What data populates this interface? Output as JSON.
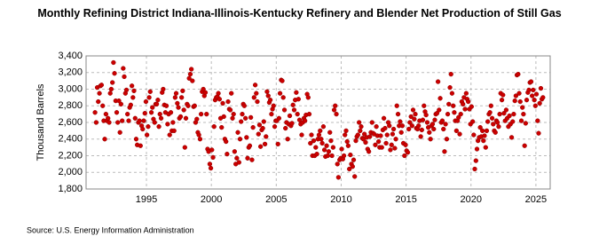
{
  "chart_data": {
    "type": "scatter",
    "title": "Monthly Refining District Indiana-Illinois-Kentucky Refinery and Blender Net Production of Still Gas",
    "y_label": "Thousand Barrels",
    "source": "Source: U.S. Energy Information Administration",
    "color": "#cc0000",
    "grid": true,
    "xlim": [
      1990.35,
      2026.1
    ],
    "ylim": [
      1800,
      3400
    ],
    "xticks": [
      1995,
      2000,
      2005,
      2010,
      2015,
      2020,
      2025
    ],
    "yticks": [
      {
        "value": 1800,
        "label": "1,800"
      },
      {
        "value": 2000,
        "label": "2,000"
      },
      {
        "value": 2200,
        "label": "2,200"
      },
      {
        "value": 2400,
        "label": "2,400"
      },
      {
        "value": 2600,
        "label": "2,600"
      },
      {
        "value": 2800,
        "label": "2,800"
      },
      {
        "value": 3000,
        "label": "3,000"
      },
      {
        "value": 3200,
        "label": "3,200"
      },
      {
        "value": 3400,
        "label": "3,400"
      }
    ],
    "x": [
      1991.04,
      1991.13,
      1991.21,
      1991.29,
      1991.38,
      1991.46,
      1991.54,
      1991.63,
      1991.71,
      1991.79,
      1991.88,
      1991.96,
      1992.04,
      1992.13,
      1992.21,
      1992.29,
      1992.38,
      1992.46,
      1992.54,
      1992.63,
      1992.71,
      1992.79,
      1992.88,
      1992.96,
      1993.04,
      1993.13,
      1993.21,
      1993.29,
      1993.38,
      1993.46,
      1993.54,
      1993.63,
      1993.71,
      1993.79,
      1993.88,
      1993.96,
      1994.04,
      1994.13,
      1994.21,
      1994.29,
      1994.38,
      1994.46,
      1994.54,
      1994.63,
      1994.71,
      1994.79,
      1994.88,
      1994.96,
      1995.04,
      1995.13,
      1995.21,
      1995.29,
      1995.38,
      1995.46,
      1995.54,
      1995.63,
      1995.71,
      1995.79,
      1995.88,
      1995.96,
      1996.04,
      1996.13,
      1996.21,
      1996.29,
      1996.38,
      1996.46,
      1996.54,
      1996.63,
      1996.71,
      1996.79,
      1996.88,
      1996.96,
      1997.04,
      1997.13,
      1997.21,
      1997.29,
      1997.38,
      1997.46,
      1997.54,
      1997.63,
      1997.71,
      1997.79,
      1997.88,
      1997.96,
      1998.04,
      1998.13,
      1998.21,
      1998.29,
      1998.38,
      1998.46,
      1998.54,
      1998.63,
      1998.71,
      1998.79,
      1998.88,
      1998.96,
      1999.04,
      1999.13,
      1999.21,
      1999.29,
      1999.38,
      1999.46,
      1999.54,
      1999.63,
      1999.71,
      1999.79,
      1999.88,
      1999.96,
      2000.04,
      2000.13,
      2000.21,
      2000.29,
      2000.38,
      2000.46,
      2000.54,
      2000.63,
      2000.71,
      2000.79,
      2000.88,
      2000.96,
      2001.04,
      2001.13,
      2001.21,
      2001.29,
      2001.38,
      2001.46,
      2001.54,
      2001.63,
      2001.71,
      2001.79,
      2001.88,
      2001.96,
      2002.04,
      2002.13,
      2002.21,
      2002.29,
      2002.38,
      2002.46,
      2002.54,
      2002.63,
      2002.71,
      2002.79,
      2002.88,
      2002.96,
      2003.04,
      2003.13,
      2003.21,
      2003.29,
      2003.38,
      2003.46,
      2003.54,
      2003.63,
      2003.71,
      2003.79,
      2003.88,
      2003.96,
      2004.04,
      2004.13,
      2004.21,
      2004.29,
      2004.38,
      2004.46,
      2004.54,
      2004.63,
      2004.71,
      2004.79,
      2004.88,
      2004.96,
      2005.04,
      2005.13,
      2005.21,
      2005.29,
      2005.38,
      2005.46,
      2005.54,
      2005.63,
      2005.71,
      2005.79,
      2005.88,
      2005.96,
      2006.04,
      2006.13,
      2006.21,
      2006.29,
      2006.38,
      2006.46,
      2006.54,
      2006.63,
      2006.71,
      2006.79,
      2006.88,
      2006.96,
      2007.04,
      2007.13,
      2007.21,
      2007.29,
      2007.38,
      2007.46,
      2007.54,
      2007.63,
      2007.71,
      2007.79,
      2007.88,
      2007.96,
      2008.04,
      2008.13,
      2008.21,
      2008.29,
      2008.38,
      2008.46,
      2008.54,
      2008.63,
      2008.71,
      2008.79,
      2008.88,
      2008.96,
      2009.04,
      2009.13,
      2009.21,
      2009.29,
      2009.38,
      2009.46,
      2009.54,
      2009.63,
      2009.71,
      2009.79,
      2009.88,
      2009.96,
      2010.04,
      2010.13,
      2010.21,
      2010.29,
      2010.38,
      2010.46,
      2010.54,
      2010.63,
      2010.71,
      2010.79,
      2010.88,
      2010.96,
      2011.04,
      2011.13,
      2011.21,
      2011.29,
      2011.38,
      2011.46,
      2011.54,
      2011.63,
      2011.71,
      2011.79,
      2011.88,
      2011.96,
      2012.04,
      2012.13,
      2012.21,
      2012.29,
      2012.38,
      2012.46,
      2012.54,
      2012.63,
      2012.71,
      2012.79,
      2012.88,
      2012.96,
      2013.04,
      2013.13,
      2013.21,
      2013.29,
      2013.38,
      2013.46,
      2013.54,
      2013.63,
      2013.71,
      2013.79,
      2013.88,
      2013.96,
      2014.04,
      2014.13,
      2014.21,
      2014.29,
      2014.38,
      2014.46,
      2014.54,
      2014.63,
      2014.71,
      2014.79,
      2014.88,
      2014.96,
      2015.04,
      2015.13,
      2015.21,
      2015.29,
      2015.38,
      2015.46,
      2015.54,
      2015.63,
      2015.71,
      2015.79,
      2015.88,
      2015.96,
      2016.04,
      2016.13,
      2016.21,
      2016.29,
      2016.38,
      2016.46,
      2016.54,
      2016.63,
      2016.71,
      2016.79,
      2016.88,
      2016.96,
      2017.04,
      2017.13,
      2017.21,
      2017.29,
      2017.38,
      2017.46,
      2017.54,
      2017.63,
      2017.71,
      2017.79,
      2017.88,
      2017.96,
      2018.04,
      2018.13,
      2018.21,
      2018.29,
      2018.38,
      2018.46,
      2018.54,
      2018.63,
      2018.71,
      2018.79,
      2018.88,
      2018.96,
      2019.04,
      2019.13,
      2019.21,
      2019.29,
      2019.38,
      2019.46,
      2019.54,
      2019.63,
      2019.71,
      2019.79,
      2019.88,
      2019.96,
      2020.04,
      2020.13,
      2020.21,
      2020.29,
      2020.38,
      2020.46,
      2020.54,
      2020.63,
      2020.71,
      2020.79,
      2020.88,
      2020.96,
      2021.04,
      2021.13,
      2021.21,
      2021.29,
      2021.38,
      2021.46,
      2021.54,
      2021.63,
      2021.71,
      2021.79,
      2021.88,
      2021.96,
      2022.04,
      2022.13,
      2022.21,
      2022.29,
      2022.38,
      2022.46,
      2022.54,
      2022.63,
      2022.71,
      2022.79,
      2022.88,
      2022.96,
      2023.04,
      2023.13,
      2023.21,
      2023.29,
      2023.38,
      2023.46,
      2023.54,
      2023.63,
      2023.71,
      2023.79,
      2023.88,
      2023.96,
      2024.04,
      2024.13,
      2024.21,
      2024.29,
      2024.38,
      2024.46,
      2024.54,
      2024.63,
      2024.71,
      2024.79,
      2024.88,
      2024.96,
      2025.04,
      2025.13,
      2025.21,
      2025.29,
      2025.38,
      2025.46,
      2025.54
    ],
    "values": [
      2720,
      2600,
      3020,
      2850,
      2950,
      3040,
      3050,
      2800,
      2620,
      2400,
      2700,
      2620,
      2650,
      2600,
      2950,
      3000,
      3080,
      3320,
      3190,
      2860,
      2720,
      2600,
      2860,
      2480,
      2820,
      2620,
      3250,
      3150,
      2950,
      2990,
      2700,
      2620,
      2780,
      2810,
      3040,
      2900,
      2980,
      2650,
      2400,
      2330,
      2600,
      2620,
      2320,
      2560,
      2520,
      2620,
      2710,
      2850,
      2450,
      2550,
      2900,
      2970,
      2720,
      2780,
      2640,
      2600,
      2820,
      2820,
      2870,
      2550,
      2700,
      2650,
      2960,
      3000,
      2810,
      2720,
      2800,
      2580,
      2700,
      2450,
      2720,
      2500,
      2600,
      2500,
      2900,
      2950,
      2830,
      2780,
      2650,
      2670,
      2900,
      2980,
      2750,
      2300,
      2650,
      2820,
      2800,
      3130,
      3180,
      3240,
      3100,
      2790,
      2800,
      2600,
      2640,
      2480,
      2450,
      2400,
      2700,
      2970,
      3000,
      2920,
      2960,
      2700,
      2280,
      2250,
      2100,
      2050,
      2270,
      2180,
      2550,
      2870,
      2900,
      2910,
      2950,
      2880,
      2650,
      2540,
      2830,
      2670,
      2400,
      2370,
      2220,
      2850,
      2760,
      2750,
      2950,
      2650,
      2700,
      2250,
      2100,
      2170,
      2480,
      2120,
      2400,
      2610,
      2700,
      2820,
      2800,
      2650,
      2420,
      2170,
      2300,
      2320,
      2660,
      2150,
      2540,
      2900,
      3050,
      2950,
      2850,
      2460,
      2570,
      2310,
      2510,
      2530,
      2610,
      2340,
      2430,
      2970,
      2920,
      2840,
      2870,
      2700,
      2760,
      2800,
      2550,
      2620,
      2620,
      2340,
      2650,
      2950,
      3110,
      3100,
      2900,
      2750,
      2530,
      2600,
      2400,
      2580,
      2680,
      2560,
      2590,
      2810,
      2750,
      2870,
      2960,
      2700,
      2880,
      2630,
      2580,
      2450,
      2600,
      2650,
      2620,
      2690,
      2940,
      2900,
      2700,
      2350,
      2450,
      2200,
      2380,
      2200,
      2300,
      2220,
      2400,
      2450,
      2500,
      2400,
      2350,
      2550,
      2270,
      2190,
      2320,
      2200,
      2250,
      2480,
      2380,
      2200,
      2300,
      2750,
      2800,
      2700,
      2100,
      1940,
      2150,
      2170,
      2280,
      2160,
      2200,
      2450,
      2500,
      2370,
      2320,
      2040,
      2210,
      2100,
      2070,
      2150,
      1950,
      2380,
      2430,
      2450,
      2600,
      2500,
      2550,
      2410,
      2400,
      2460,
      2360,
      2420,
      2280,
      2250,
      2430,
      2480,
      2600,
      2470,
      2460,
      2330,
      2550,
      2440,
      2370,
      2300,
      2440,
      2300,
      2510,
      2650,
      2530,
      2350,
      2450,
      2600,
      2560,
      2270,
      2330,
      2460,
      2520,
      2290,
      2400,
      2800,
      2700,
      2560,
      2610,
      2480,
      2560,
      2350,
      2200,
      2330,
      2260,
      2240,
      2520,
      2600,
      2670,
      2560,
      2750,
      2640,
      2700,
      2530,
      2520,
      2560,
      2620,
      2430,
      2510,
      2630,
      2800,
      2730,
      2690,
      2600,
      2540,
      2480,
      2400,
      2560,
      2580,
      2520,
      2630,
      2700,
      2710,
      3090,
      2750,
      2890,
      2600,
      2620,
      2520,
      2250,
      2580,
      2400,
      2700,
      2820,
      3020,
      3180,
      2950,
      2800,
      2720,
      2620,
      2500,
      2620,
      2660,
      2460,
      2700,
      2850,
      2820,
      2900,
      2760,
      2950,
      2880,
      2850,
      2760,
      2580,
      2790,
      2610,
      2450,
      2040,
      2140,
      2280,
      2380,
      2420,
      2540,
      2430,
      2500,
      2380,
      2440,
      2300,
      2500,
      2610,
      2700,
      2720,
      2800,
      2650,
      2580,
      2500,
      2480,
      2620,
      2600,
      2550,
      2700,
      2950,
      2870,
      2930,
      2710,
      2620,
      2750,
      2650,
      2550,
      2680,
      2580,
      2420,
      2610,
      2700,
      2860,
      2920,
      3170,
      3180,
      2950,
      2850,
      2620,
      2780,
      2700,
      2320,
      2590,
      2870,
      2960,
      2990,
      3080,
      3090,
      2920,
      2990,
      2870,
      2800,
      2940,
      2620,
      2470,
      2830,
      3010,
      2880,
      2900
    ]
  }
}
